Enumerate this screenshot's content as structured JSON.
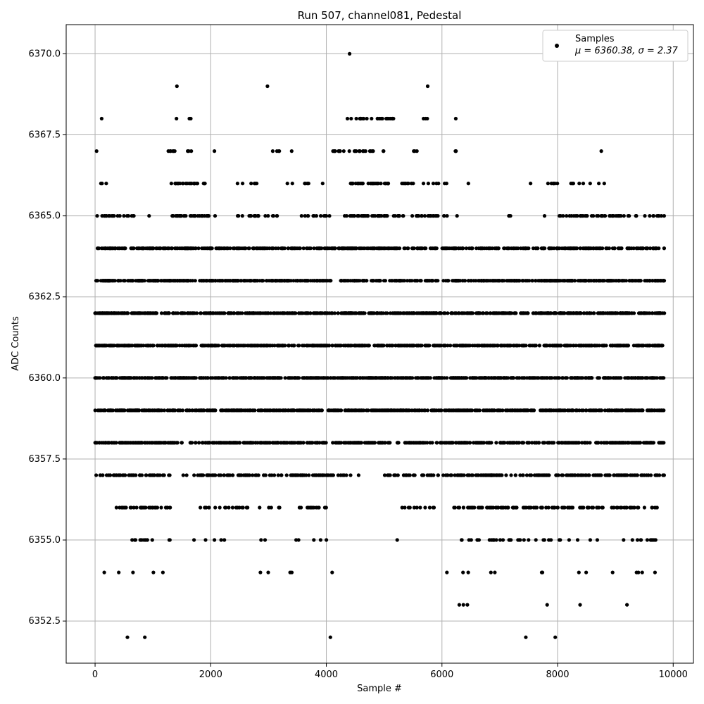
{
  "chart_data": {
    "type": "scatter",
    "title": "Run 507, channel081, Pedestal",
    "xlabel": "Sample #",
    "ylabel": "ADC Counts",
    "xlim": [
      -500,
      10350
    ],
    "ylim": [
      6351.2,
      6370.9
    ],
    "x_ticks": [
      0,
      2000,
      4000,
      6000,
      8000,
      10000
    ],
    "y_ticks": [
      6352.5,
      6355.0,
      6357.5,
      6360.0,
      6362.5,
      6365.0,
      6367.5,
      6370.0
    ],
    "x_tick_labels": [
      "0",
      "2000",
      "4000",
      "6000",
      "8000",
      "10000"
    ],
    "y_tick_labels": [
      "6352.5",
      "6355.0",
      "6357.5",
      "6360.0",
      "6362.5",
      "6365.0",
      "6367.5",
      "6370.0"
    ],
    "grid": true,
    "legend_position": "top-right",
    "series": [
      {
        "name": "Samples",
        "label": "μ = 6360.38, σ = 2.37",
        "color": "#000000",
        "n_samples": 9850,
        "density_by_level": {
          "6352": [
            [
              560,
              0.6
            ],
            [
              860,
              0.6
            ],
            [
              4070,
              0.6
            ],
            [
              7450,
              0.6
            ],
            [
              7960,
              0.6
            ]
          ],
          "6353": [
            [
              6300,
              1
            ],
            [
              6370,
              1
            ],
            [
              6440,
              1
            ],
            [
              7820,
              1
            ],
            [
              8390,
              1
            ],
            [
              9200,
              1
            ]
          ],
          "6354": [
            [
              0,
              300,
              0.2
            ],
            [
              300,
              900,
              0.3
            ],
            [
              900,
              1200,
              0.5
            ],
            [
              2300,
              3000,
              0.2
            ],
            [
              3000,
              3700,
              0.2
            ],
            [
              3900,
              4200,
              0.3
            ],
            [
              5900,
              6200,
              0.3
            ],
            [
              6200,
              6500,
              0.4
            ],
            [
              6800,
              7200,
              0.4
            ],
            [
              7700,
              8100,
              0.3
            ],
            [
              8300,
              8500,
              0.6
            ],
            [
              8900,
              9700,
              0.5
            ]
          ],
          "6355": [
            [
              500,
              1300,
              1.0
            ],
            [
              1700,
              3000,
              0.4
            ],
            [
              3400,
              4300,
              0.4
            ],
            [
              5200,
              5300,
              0.5
            ],
            [
              6100,
              6700,
              0.8
            ],
            [
              6700,
              8200,
              1.2
            ],
            [
              8300,
              8700,
              0.6
            ],
            [
              9000,
              9700,
              1.2
            ]
          ],
          "6356": [
            [
              100,
              400,
              0.2
            ],
            [
              400,
              1300,
              3
            ],
            [
              1800,
              2300,
              1.4
            ],
            [
              2300,
              3300,
              1.2
            ],
            [
              3500,
              4300,
              1.4
            ],
            [
              5200,
              5900,
              1.2
            ],
            [
              6200,
              8800,
              2.6
            ],
            [
              8900,
              9800,
              1.8
            ]
          ],
          "6357": [
            [
              0,
              1300,
              3
            ],
            [
              1400,
              1600,
              0.8
            ],
            [
              1700,
              4300,
              3
            ],
            [
              4300,
              4600,
              1
            ],
            [
              5000,
              9850,
              3
            ]
          ],
          "6358": [
            [
              0,
              9850,
              4
            ]
          ],
          "6359": [
            [
              0,
              9850,
              4.5
            ]
          ],
          "6360": [
            [
              0,
              9850,
              5
            ]
          ],
          "6361": [
            [
              0,
              9850,
              5
            ]
          ],
          "6362": [
            [
              0,
              9850,
              5
            ]
          ],
          "6363": [
            [
              0,
              9850,
              4.5
            ]
          ],
          "6364": [
            [
              0,
              9850,
              4
            ]
          ],
          "6365": [
            [
              0,
              700,
              2
            ],
            [
              900,
              1000,
              1
            ],
            [
              1300,
              2100,
              3
            ],
            [
              2400,
              3200,
              2
            ],
            [
              3500,
              4100,
              1.5
            ],
            [
              4300,
              5200,
              3
            ],
            [
              5200,
              6300,
              2
            ],
            [
              7000,
              7300,
              0.8
            ],
            [
              7700,
              7800,
              1
            ],
            [
              8000,
              9850,
              2
            ]
          ],
          "6366": [
            [
              0,
              250,
              1
            ],
            [
              1300,
              1800,
              3
            ],
            [
              1850,
              2900,
              0.6
            ],
            [
              3100,
              4000,
              0.6
            ],
            [
              4300,
              5100,
              3
            ],
            [
              5300,
              6100,
              1.4
            ],
            [
              6400,
              6500,
              1
            ],
            [
              7400,
              8000,
              0.8
            ],
            [
              8200,
              8900,
              0.8
            ]
          ],
          "6367": [
            [
              0,
              100,
              1
            ],
            [
              1250,
              1400,
              3
            ],
            [
              1600,
              1700,
              2
            ],
            [
              2000,
              2100,
              1
            ],
            [
              3000,
              3400,
              1
            ],
            [
              4100,
              5000,
              2
            ],
            [
              5500,
              5600,
              2
            ],
            [
              6200,
              6300,
              2
            ],
            [
              8750,
              8760,
              1
            ]
          ],
          "6368": [
            [
              100,
              150,
              1
            ],
            [
              1380,
              1420,
              1
            ],
            [
              1620,
              1680,
              2
            ],
            [
              4300,
              5200,
              2
            ],
            [
              5600,
              5800,
              1
            ],
            [
              6200,
              6250,
              1
            ]
          ],
          "6369": [
            [
              1380,
              1420,
              2
            ],
            [
              2970,
              3000,
              1
            ],
            [
              5730,
              5760,
              1
            ]
          ],
          "6370": [
            [
              4400,
              4430,
              1
            ]
          ]
        }
      }
    ]
  }
}
